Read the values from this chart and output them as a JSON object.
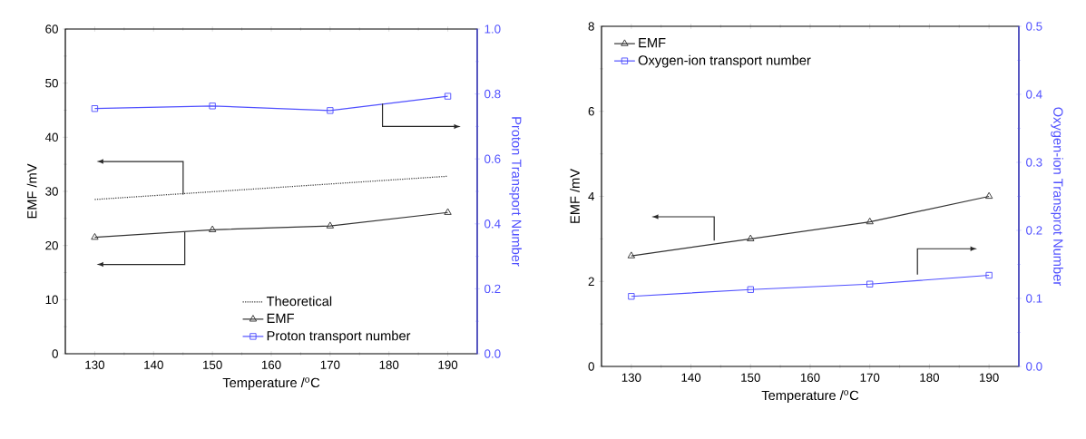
{
  "chart_data": [
    {
      "type": "line",
      "xlabel": "Temperature /$^{o}$C",
      "ylabel": "EMF /mV",
      "y2label": "Proton Transport Number",
      "xlim": [
        125,
        195
      ],
      "xticks": [
        130,
        140,
        150,
        160,
        170,
        180,
        190
      ],
      "ylim": [
        0,
        60
      ],
      "yticks": [
        0,
        10,
        20,
        30,
        40,
        50,
        60
      ],
      "y2lim": [
        0,
        1
      ],
      "y2ticks": [
        {
          "value": 0,
          "label": "0.0"
        },
        {
          "value": 0.2,
          "label": "0.2"
        },
        {
          "value": 0.4,
          "label": "0.4"
        },
        {
          "value": 0.6,
          "label": "0.6"
        },
        {
          "value": 0.8,
          "label": "0.8"
        },
        {
          "value": 1,
          "label": "1.0"
        }
      ],
      "legend": "bottom",
      "x": [
        130,
        150,
        170,
        190
      ],
      "series": [
        {
          "name": "Theoretical",
          "color": "#333333",
          "x": [
            130,
            190
          ],
          "values": [
            28.5,
            32.8
          ],
          "marker": "none",
          "line_style": "dotted"
        },
        {
          "name": "EMF",
          "color": "#333333",
          "values": [
            21.5,
            22.9,
            23.6,
            26.1
          ],
          "marker": "triangle",
          "line_style": "solid"
        },
        {
          "name": "Proton transport number",
          "color": "#5050ff",
          "values": [
            0.755,
            0.763,
            0.749,
            0.793
          ],
          "marker": "square",
          "line_style": "solid",
          "axis": "y2"
        }
      ]
    },
    {
      "type": "line",
      "xlabel": "Temperature /$^{o}$C",
      "ylabel": "EMF /mV",
      "y2label": "Oxygen-ion Transprot Number",
      "xlim": [
        125,
        195
      ],
      "xticks": [
        130,
        140,
        150,
        160,
        170,
        180,
        190
      ],
      "ylim": [
        0,
        8
      ],
      "yticks": [
        0,
        2,
        4,
        6,
        8
      ],
      "y2lim": [
        0,
        0.5
      ],
      "y2ticks": [
        {
          "value": 0,
          "label": "0.0"
        },
        {
          "value": 0.1,
          "label": "0.1"
        },
        {
          "value": 0.2,
          "label": "0.2"
        },
        {
          "value": 0.3,
          "label": "0.3"
        },
        {
          "value": 0.4,
          "label": "0.4"
        },
        {
          "value": 0.5,
          "label": "0.5"
        }
      ],
      "legend": "top left",
      "x": [
        130,
        150,
        170,
        190
      ],
      "series": [
        {
          "name": "EMF",
          "color": "#333333",
          "values": [
            2.6,
            3.0,
            3.4,
            4.0
          ],
          "marker": "triangle",
          "line_style": "solid"
        },
        {
          "name": "Oxygen-ion transport number",
          "color": "#5050ff",
          "values": [
            0.103,
            0.113,
            0.121,
            0.134
          ],
          "marker": "square",
          "line_style": "solid",
          "axis": "y2"
        }
      ]
    }
  ]
}
